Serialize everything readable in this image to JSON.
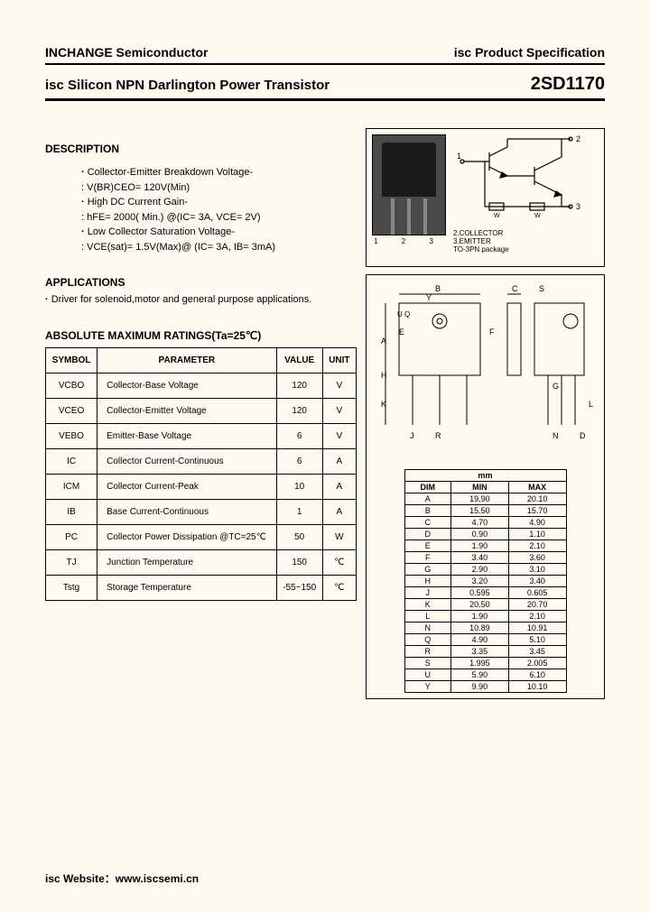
{
  "header": {
    "company": "INCHANGE Semiconductor",
    "spec": "isc Product Specification"
  },
  "title": {
    "left": "isc Silicon NPN Darlington Power Transistor",
    "right": "2SD1170"
  },
  "description": {
    "heading": "DESCRIPTION",
    "items": [
      "Collector-Emitter Breakdown Voltage-",
      ": V(BR)CEO= 120V(Min)",
      "High DC Current Gain-",
      ": hFE= 2000( Min.) @(IC= 3A, VCE= 2V)",
      "Low Collector Saturation Voltage-",
      ": VCE(sat)= 1.5V(Max)@ (IC= 3A, IB= 3mA)"
    ]
  },
  "applications": {
    "heading": "APPLICATIONS",
    "text": "Driver for solenoid,motor and general purpose applications."
  },
  "ratings": {
    "heading": "ABSOLUTE MAXIMUM RATINGS(Ta=25℃)",
    "columns": [
      "SYMBOL",
      "PARAMETER",
      "VALUE",
      "UNIT"
    ],
    "rows": [
      [
        "VCBO",
        "Collector-Base Voltage",
        "120",
        "V"
      ],
      [
        "VCEO",
        "Collector-Emitter Voltage",
        "120",
        "V"
      ],
      [
        "VEBO",
        "Emitter-Base Voltage",
        "6",
        "V"
      ],
      [
        "IC",
        "Collector Current-Continuous",
        "6",
        "A"
      ],
      [
        "ICM",
        "Collector Current-Peak",
        "10",
        "A"
      ],
      [
        "IB",
        "Base Current-Continuous",
        "1",
        "A"
      ],
      [
        "PC",
        "Collector Power Dissipation @TC=25℃",
        "50",
        "W"
      ],
      [
        "TJ",
        "Junction Temperature",
        "150",
        "℃"
      ],
      [
        "Tstg",
        "Storage Temperature",
        "-55~150",
        "℃"
      ]
    ]
  },
  "schematic": {
    "pin1": "1",
    "pin2": "2",
    "pin3": "3",
    "labels": [
      "2.COLLECTOR",
      "3.EMITTER",
      "TO-3PN package"
    ]
  },
  "dimensions": {
    "header": "mm",
    "columns": [
      "DIM",
      "MIN",
      "MAX"
    ],
    "rows": [
      [
        "A",
        "19.90",
        "20.10"
      ],
      [
        "B",
        "15.50",
        "15.70"
      ],
      [
        "C",
        "4.70",
        "4.90"
      ],
      [
        "D",
        "0.90",
        "1.10"
      ],
      [
        "E",
        "1.90",
        "2.10"
      ],
      [
        "F",
        "3.40",
        "3.60"
      ],
      [
        "G",
        "2.90",
        "3.10"
      ],
      [
        "H",
        "3.20",
        "3.40"
      ],
      [
        "J",
        "0.595",
        "0.605"
      ],
      [
        "K",
        "20.50",
        "20.70"
      ],
      [
        "L",
        "1.90",
        "2.10"
      ],
      [
        "N",
        "10.89",
        "10.91"
      ],
      [
        "Q",
        "4.90",
        "5.10"
      ],
      [
        "R",
        "3.35",
        "3.45"
      ],
      [
        "S",
        "1.995",
        "2.005"
      ],
      [
        "U",
        "5.90",
        "6.10"
      ],
      [
        "Y",
        "9.90",
        "10.10"
      ]
    ]
  },
  "footer": "isc Website：www.iscsemi.cn",
  "style": {
    "page_bg": "#fdfbf0",
    "text_color": "#000000",
    "border_color": "#000000"
  }
}
